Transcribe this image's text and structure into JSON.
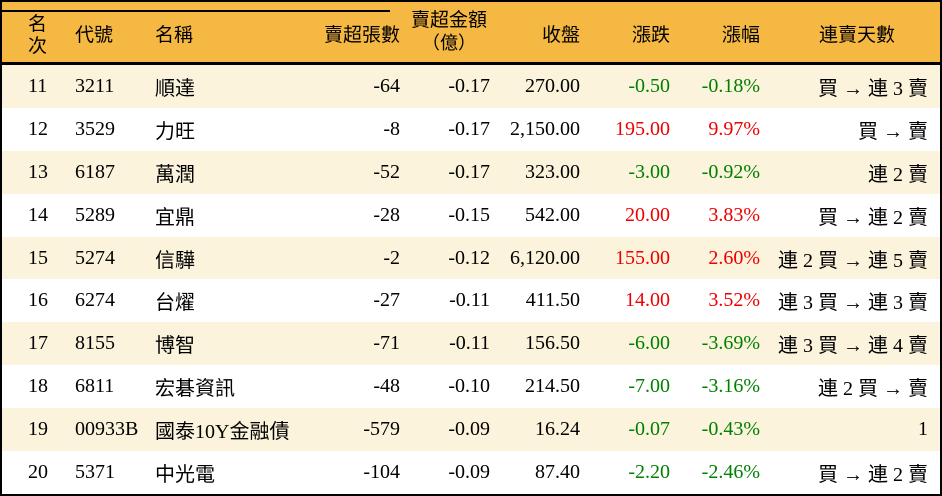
{
  "colors": {
    "header_bg": "#F5B842",
    "row_alt_bg": "#FBF3DB",
    "row_bg": "#FFFFFF",
    "positive_text": "#EE0000",
    "negative_text": "#008000",
    "border": "#000000",
    "text": "#000000"
  },
  "table": {
    "columns": [
      {
        "key": "rank",
        "label": "名次"
      },
      {
        "key": "code",
        "label": "代號"
      },
      {
        "key": "name",
        "label": "名稱"
      },
      {
        "key": "volume",
        "label": "賣超張數"
      },
      {
        "key": "amount",
        "label": "賣超金額",
        "label2": "（億）"
      },
      {
        "key": "close",
        "label": "收盤"
      },
      {
        "key": "change",
        "label": "漲跌"
      },
      {
        "key": "pct",
        "label": "漲幅"
      },
      {
        "key": "streak",
        "label": "連賣天數"
      }
    ],
    "rows": [
      {
        "rank": "11",
        "code": "3211",
        "name": "順達",
        "volume": "-64",
        "amount": "-0.17",
        "close": "270.00",
        "change": "-0.50",
        "pct": "-0.18%",
        "streak": "買 → 連 3 賣"
      },
      {
        "rank": "12",
        "code": "3529",
        "name": "力旺",
        "volume": "-8",
        "amount": "-0.17",
        "close": "2,150.00",
        "change": "195.00",
        "pct": "9.97%",
        "streak": "買 → 賣"
      },
      {
        "rank": "13",
        "code": "6187",
        "name": "萬潤",
        "volume": "-52",
        "amount": "-0.17",
        "close": "323.00",
        "change": "-3.00",
        "pct": "-0.92%",
        "streak": "連 2 賣"
      },
      {
        "rank": "14",
        "code": "5289",
        "name": "宜鼎",
        "volume": "-28",
        "amount": "-0.15",
        "close": "542.00",
        "change": "20.00",
        "pct": "3.83%",
        "streak": "買 → 連 2 賣"
      },
      {
        "rank": "15",
        "code": "5274",
        "name": "信驊",
        "volume": "-2",
        "amount": "-0.12",
        "close": "6,120.00",
        "change": "155.00",
        "pct": "2.60%",
        "streak": "連 2 買 → 連 5 賣"
      },
      {
        "rank": "16",
        "code": "6274",
        "name": "台燿",
        "volume": "-27",
        "amount": "-0.11",
        "close": "411.50",
        "change": "14.00",
        "pct": "3.52%",
        "streak": "連 3 買 → 連 3 賣"
      },
      {
        "rank": "17",
        "code": "8155",
        "name": "博智",
        "volume": "-71",
        "amount": "-0.11",
        "close": "156.50",
        "change": "-6.00",
        "pct": "-3.69%",
        "streak": "連 3 買 → 連 4 賣"
      },
      {
        "rank": "18",
        "code": "6811",
        "name": "宏碁資訊",
        "volume": "-48",
        "amount": "-0.10",
        "close": "214.50",
        "change": "-7.00",
        "pct": "-3.16%",
        "streak": "連 2 買 → 賣"
      },
      {
        "rank": "19",
        "code": "00933B",
        "name": "國泰10Y金融債",
        "volume": "-579",
        "amount": "-0.09",
        "close": "16.24",
        "change": "-0.07",
        "pct": "-0.43%",
        "streak": "1"
      },
      {
        "rank": "20",
        "code": "5371",
        "name": "中光電",
        "volume": "-104",
        "amount": "-0.09",
        "close": "87.40",
        "change": "-2.20",
        "pct": "-2.46%",
        "streak": "買 → 連 2 賣"
      }
    ]
  }
}
